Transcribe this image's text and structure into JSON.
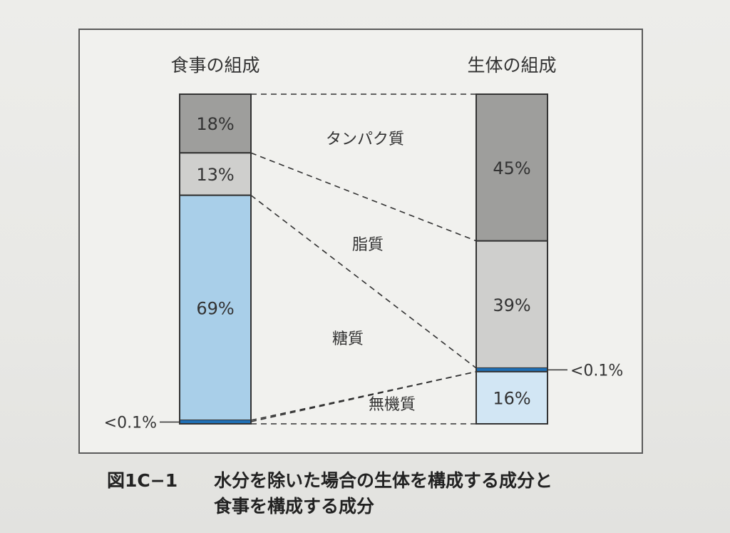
{
  "chart_data": {
    "type": "stacked-bar",
    "columns": [
      {
        "title": "食事の組成",
        "segments": [
          {
            "component": "タンパク質",
            "value": 18,
            "label": "18%",
            "color": "#9e9e9c"
          },
          {
            "component": "脂質",
            "value": 13,
            "label": "13%",
            "color": "#cfcfcd"
          },
          {
            "component": "糖質",
            "value": 69,
            "label": "69%",
            "color": "#a9cfe9"
          },
          {
            "component": "無機質",
            "value": 0.1,
            "label": "<0.1%",
            "color": "#1f6fb5"
          }
        ]
      },
      {
        "title": "生体の組成",
        "segments": [
          {
            "component": "タンパク質",
            "value": 45,
            "label": "45%",
            "color": "#9e9e9c"
          },
          {
            "component": "脂質",
            "value": 39,
            "label": "39%",
            "color": "#cfcfcd"
          },
          {
            "component": "糖質",
            "value": 0.1,
            "label": "<0.1%",
            "color": "#1f6fb5"
          },
          {
            "component": "無機質",
            "value": 16,
            "label": "16%",
            "color": "#d2e6f4"
          }
        ]
      }
    ],
    "components": [
      "タンパク質",
      "脂質",
      "糖質",
      "無機質"
    ],
    "ylim": [
      0,
      100
    ]
  },
  "caption": {
    "number": "図1C−1",
    "line1": "水分を除いた場合の生体を構成する成分と",
    "line2": "食事を構成する成分"
  }
}
